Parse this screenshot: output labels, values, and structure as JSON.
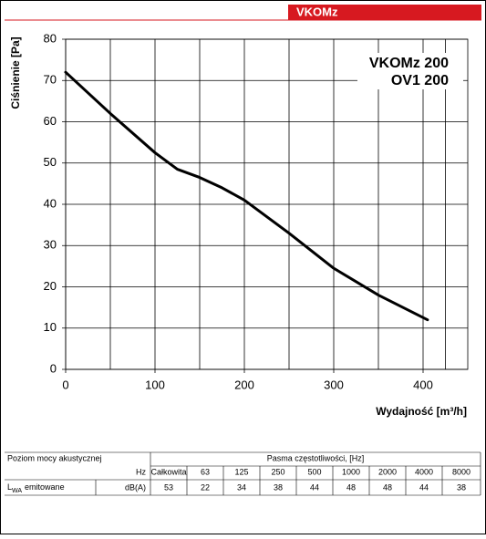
{
  "tab": "VKOMz",
  "chart_data": {
    "type": "line",
    "ylabel": "Ciśnienie [Pa]",
    "xlabel": "Wydajność [m³/h]",
    "annotations": [
      "VKOMz 200",
      "OV1 200"
    ],
    "x": [
      0,
      50,
      100,
      125,
      150,
      175,
      200,
      250,
      300,
      350,
      405
    ],
    "series": [
      {
        "color": "#000000",
        "values": [
          72,
          62,
          52.5,
          48.5,
          46.5,
          44,
          41,
          33,
          24.5,
          18,
          12
        ]
      }
    ],
    "xlim": [
      0,
      450
    ],
    "xticks": [
      0,
      100,
      200,
      300,
      400
    ],
    "ylim": [
      0,
      80
    ],
    "yticks": [
      0,
      10,
      20,
      30,
      40,
      50,
      60,
      70,
      80
    ],
    "grid": true
  },
  "table": {
    "row_header": "Poziom mocy akustycznej",
    "band_header": "Pasma częstotliwości, [Hz]",
    "unit_header": "Hz",
    "columns": [
      "Całkowita",
      "63",
      "125",
      "250",
      "500",
      "1000",
      "2000",
      "4000",
      "8000"
    ],
    "row_label": {
      "main": "L",
      "sub": "WA",
      "rest": "emitowane"
    },
    "row_unit": "dB(A)",
    "values": [
      53,
      22,
      34,
      38,
      44,
      48,
      48,
      44,
      38
    ]
  }
}
